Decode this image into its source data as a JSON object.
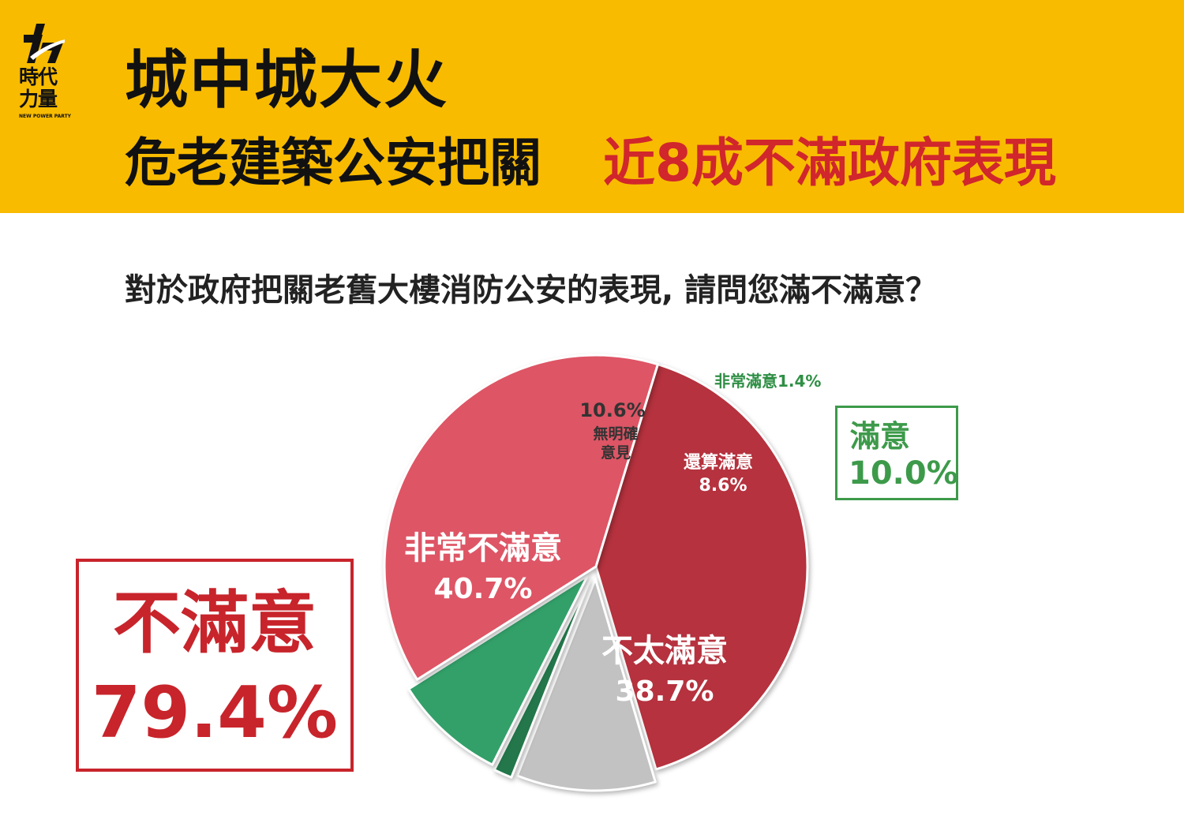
{
  "header": {
    "logo_name_line1": "時代",
    "logo_name_line2": "力量",
    "logo_english": "NEW POWER PARTY",
    "title_line1": "城中城大火",
    "title_line2_black": "危老建築公安把關",
    "title_line2_red": "近8成不滿政府表現"
  },
  "question": "對於政府把關老舊大樓消防公安的表現, 請問您滿不滿意？",
  "summary": {
    "unsatisfied_label": "不滿意",
    "unsatisfied_value": "79.4%",
    "satisfied_label": "滿意",
    "satisfied_value": "10.0%"
  },
  "colors": {
    "header_bg": "#F8BB00",
    "red_text": "#D0262C",
    "very_unsatisfied": "#B5323E",
    "somewhat_unsatisfied": "#DE5565",
    "no_opinion": "#C2C2C2",
    "very_satisfied": "#23774A",
    "somewhat_satisfied": "#33A069",
    "satisfied_text": "#3D9A4A"
  },
  "chart_data": {
    "type": "pie",
    "slices": [
      {
        "label": "非常不滿意",
        "value": 40.7,
        "value_label": "40.7%",
        "color": "#B5323E"
      },
      {
        "label": "無明確意見",
        "label_lines": [
          "無明確",
          "意見"
        ],
        "value": 10.6,
        "value_label": "10.6%",
        "color": "#C2C2C2"
      },
      {
        "label": "非常滿意",
        "value": 1.4,
        "value_label": "1.4%",
        "color": "#23774A"
      },
      {
        "label": "還算滿意",
        "value": 8.6,
        "value_label": "8.6%",
        "color": "#33A069"
      },
      {
        "label": "不太滿意",
        "value": 38.7,
        "value_label": "38.7%",
        "color": "#DE5565"
      }
    ]
  }
}
